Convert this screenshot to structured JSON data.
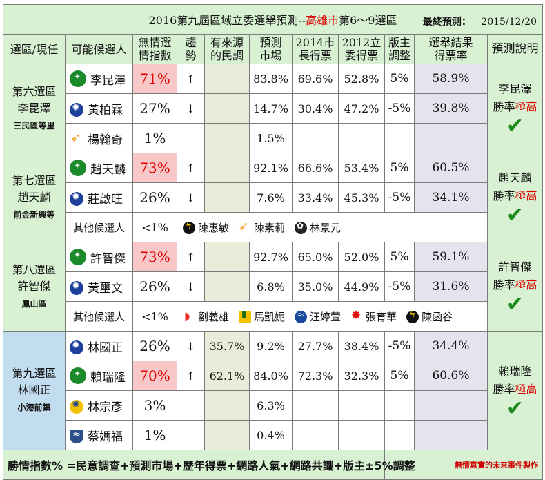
{
  "title": {
    "prefix": "2016第九屆區域立委選舉預測--",
    "city": "高雄市",
    "suffix": "第6～9選區",
    "date_label": "最終預測：",
    "date": "2015/12/20"
  },
  "headers": {
    "district": "選區/現任",
    "candidate": "可能候選人",
    "index": [
      "無情選",
      "情指數"
    ],
    "trend": [
      "趨",
      "勢"
    ],
    "poll": [
      "有來源",
      "的民調"
    ],
    "market": [
      "預測",
      "市場"
    ],
    "mayor2014": [
      "2014市",
      "長得票"
    ],
    "legis2012": [
      "2012立",
      "委得票"
    ],
    "adjust": [
      "版主",
      "調整"
    ],
    "result": [
      "選舉結果",
      "得票率"
    ],
    "explain": "預測說明"
  },
  "districts": [
    {
      "name": "第六選區",
      "incumbent": "李昆澤",
      "area": "三民區等里",
      "prediction": {
        "winner": "李昆澤",
        "prefix": "勝率",
        "level": "極高",
        "check": "✔"
      },
      "candidates": [
        {
          "party_icon": "dpp-icon",
          "name": "李昆澤",
          "index": "71%",
          "trend": "↑",
          "poll": "",
          "market": "83.8%",
          "mayor2014": "69.6%",
          "legis2012": "52.8%",
          "adjust": "5%",
          "result": "58.9%"
        },
        {
          "party_icon": "kmt-icon",
          "name": "黃柏霖",
          "index": "27%",
          "trend": "↓",
          "poll": "",
          "market": "14.7%",
          "mayor2014": "30.4%",
          "legis2012": "47.2%",
          "adjust": "-5%",
          "result": "39.8%"
        },
        {
          "party_icon": "bird-icon",
          "name": "楊翰奇",
          "index": "1%",
          "trend": "",
          "poll": "",
          "market": "1.5%",
          "mayor2014": "",
          "legis2012": "",
          "adjust": "",
          "result": ""
        }
      ]
    },
    {
      "name": "第七選區",
      "incumbent": "趙天麟",
      "area": "前金新興等",
      "prediction": {
        "winner": "趙天麟",
        "prefix": "勝率",
        "level": "極高",
        "check": "✔"
      },
      "candidates": [
        {
          "party_icon": "dpp-icon",
          "name": "趙天麟",
          "index": "73%",
          "trend": "↑",
          "poll": "",
          "market": "92.1%",
          "mayor2014": "66.6%",
          "legis2012": "53.4%",
          "adjust": "5%",
          "result": "60.5%"
        },
        {
          "party_icon": "kmt-icon",
          "name": "莊啟旺",
          "index": "26%",
          "trend": "↓",
          "poll": "",
          "market": "7.6%",
          "mayor2014": "33.4%",
          "legis2012": "45.3%",
          "adjust": "-5%",
          "result": "34.1%"
        }
      ],
      "others": {
        "label": "其他候選人",
        "index": "<1%",
        "items": [
          {
            "icon": "npp-icon",
            "name": "陳惠敏"
          },
          {
            "icon": "bird-icon",
            "name": "陳素莉"
          },
          {
            "icon": "flower-icon",
            "name": "林景元"
          }
        ]
      }
    },
    {
      "name": "第八選區",
      "incumbent": "許智傑",
      "area": "鳳山區",
      "prediction": {
        "winner": "許智傑",
        "prefix": "勝率",
        "level": "極高",
        "check": "✔"
      },
      "candidates": [
        {
          "party_icon": "dpp-icon",
          "name": "許智傑",
          "index": "73%",
          "trend": "↑",
          "poll": "",
          "market": "92.7%",
          "mayor2014": "65.0%",
          "legis2012": "52.0%",
          "adjust": "5%",
          "result": "59.1%"
        },
        {
          "party_icon": "kmt-icon",
          "name": "黃璽文",
          "index": "26%",
          "trend": "↓",
          "poll": "",
          "market": "6.8%",
          "mayor2014": "35.0%",
          "legis2012": "44.9%",
          "adjust": "-5%",
          "result": "31.6%"
        }
      ],
      "others": {
        "label": "其他候選人",
        "index": "<1%",
        "items": [
          {
            "icon": "rainbow-icon",
            "name": "劉義雄"
          },
          {
            "icon": "tree-icon",
            "name": "馬凱妮"
          },
          {
            "icon": "wave-icon",
            "name": "汪婷萱"
          },
          {
            "icon": "flame-icon",
            "name": "張育華"
          },
          {
            "icon": "npp-icon",
            "name": "陳函谷"
          }
        ]
      }
    },
    {
      "name": "第九選區",
      "incumbent": "林國正",
      "area": "小港前鎮",
      "prediction": {
        "winner": "賴瑞隆",
        "prefix": "勝率",
        "level": "極高",
        "check": "✔"
      },
      "candidates": [
        {
          "party_icon": "kmt-icon",
          "name": "林國正",
          "index": "26%",
          "trend": "↓",
          "poll": "35.7%",
          "market": "9.2%",
          "mayor2014": "27.7%",
          "legis2012": "38.4%",
          "adjust": "-5%",
          "result": "34.4%"
        },
        {
          "party_icon": "dpp-icon",
          "name": "賴瑞隆",
          "index": "70%",
          "trend": "↑",
          "poll": "62.1%",
          "market": "84.0%",
          "mayor2014": "72.3%",
          "legis2012": "32.3%",
          "adjust": "5%",
          "result": "60.6%"
        },
        {
          "party_icon": "pfp-icon",
          "name": "林宗彥",
          "index": "3%",
          "trend": "",
          "poll": "",
          "market": "6.3%",
          "mayor2014": "",
          "legis2012": "",
          "adjust": "",
          "result": ""
        },
        {
          "party_icon": "shield-icon",
          "name": "蔡媽福",
          "index": "1%",
          "trend": "",
          "poll": "",
          "market": "0.4%",
          "mayor2014": "",
          "legis2012": "",
          "adjust": "",
          "result": ""
        }
      ]
    }
  ],
  "footer": {
    "formula": "勝情指數% =民意調查+預測市場+歷年得票+網路人氣+網路共識+版主±5%調整",
    "credit": "無情真實的未來事件製作"
  }
}
